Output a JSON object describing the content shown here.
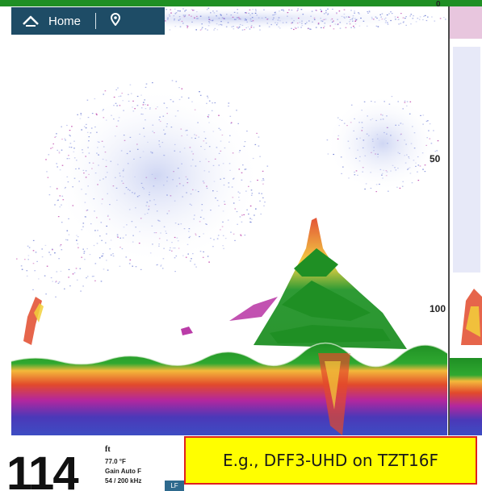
{
  "topbar": {
    "home_label": "Home",
    "home_icon": "home-icon",
    "location_icon": "location-pin-icon"
  },
  "depth_scale": {
    "labels": [
      "0",
      "50",
      "100"
    ]
  },
  "readout": {
    "depth_value": "114",
    "depth_unit": "ft",
    "water_temp": "77.0 °F",
    "gain": "Gain Auto F",
    "frequency": "54 / 200 kHz",
    "frequency_tag": "LF"
  },
  "caption": {
    "text": "E.g., DFF3-UHD on TZT16F"
  },
  "colors": {
    "topbar_bg": "#1e4c66",
    "bottom_green": "#1f8f24",
    "caption_bg": "#fffe00",
    "caption_border": "#e1211d"
  }
}
